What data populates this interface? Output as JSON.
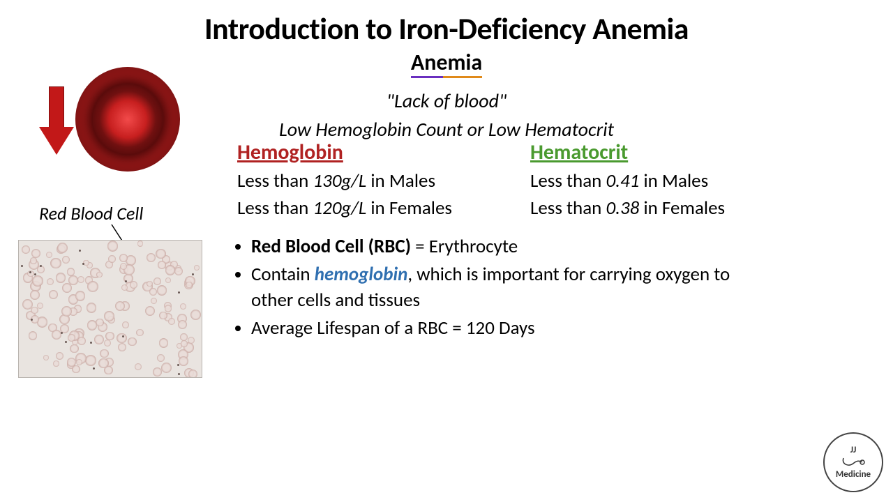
{
  "title": "Introduction to Iron-Deficiency Anemia",
  "subtitle": "Anemia",
  "lack": "\"Lack of blood\"",
  "lowline": "Low Hemoglobin Count or Low Hematocrit",
  "rbc_label": "Red Blood Cell",
  "hemoglobin": {
    "heading": "Hemoglobin",
    "color": "#b02222",
    "male_prefix": "Less than ",
    "male_value": "130g/L",
    "male_suffix": " in Males",
    "female_prefix": "Less than ",
    "female_value": "120g/L",
    "female_suffix": " in Females"
  },
  "hematocrit": {
    "heading": "Hematocrit",
    "color": "#4a9a2f",
    "male_prefix": "Less than ",
    "male_value": "0.41",
    "male_suffix": " in Males",
    "female_prefix": "Less than ",
    "female_value": "0.38",
    "female_suffix": " in Females"
  },
  "bullets": {
    "b1_bold": "Red Blood Cell (RBC)",
    "b1_rest": " = Erythrocyte",
    "b2_pre": "Contain ",
    "b2_word": "hemoglobin",
    "b2_post": ", which is important for carrying oxygen to other cells and tissues",
    "b3": "Average Lifespan of a RBC = 120 Days"
  },
  "logo": {
    "line1": "JJ",
    "line2": "Medicine"
  },
  "smear": {
    "bg": "#e9e4e0",
    "cell_count": 140,
    "cell_min_size": 8,
    "cell_max_size": 16,
    "speck_count": 18
  },
  "style": {
    "title_fontsize": 44,
    "body_fontsize": 27,
    "heading_fontsize": 30,
    "subtitle_underline_left": "#6a2fbf",
    "subtitle_underline_right": "#e08a1a",
    "hemoglobin_word_color": "#2f6fb0",
    "arrow_color": "#c21818",
    "background": "#ffffff"
  }
}
